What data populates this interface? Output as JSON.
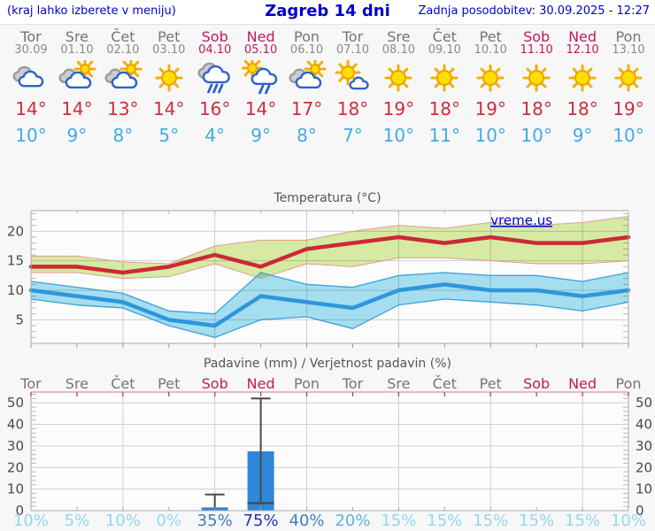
{
  "header": {
    "note": "(kraj lahko izberete v meniju)",
    "title": "Zagreb 14 dni",
    "updated": "Zadnja posodobitev: 30.09.2025 - 12:27"
  },
  "watermark": "vreme.us",
  "colors": {
    "accent_blue": "#0000cc",
    "weekend": "#c01a5c",
    "day_gray": "#757575",
    "high_red": "#d22b39",
    "low_blue": "#45aae6",
    "max_line": "#cc2936",
    "min_line": "#2f96dc",
    "max_band": "#d9eda5",
    "min_band": "#a6e1f2",
    "bar_blue": "#2f87d9",
    "pop_low": "#93d7f0",
    "pop_mid_low": "#58b6e0",
    "pop_mid": "#3f7fc0",
    "pop_high": "#1e32b9"
  },
  "days": [
    {
      "name": "Tor",
      "date": "30.09",
      "weekend": false,
      "icon": "cloudy",
      "high": "14°",
      "low": "10°",
      "pop": "10%"
    },
    {
      "name": "Sre",
      "date": "01.10",
      "weekend": false,
      "icon": "partly-sunny",
      "high": "14°",
      "low": "9°",
      "pop": "5%"
    },
    {
      "name": "Čet",
      "date": "02.10",
      "weekend": false,
      "icon": "partly-sunny",
      "high": "13°",
      "low": "8°",
      "pop": "10%"
    },
    {
      "name": "Pet",
      "date": "03.10",
      "weekend": false,
      "icon": "sunny",
      "high": "14°",
      "low": "5°",
      "pop": "0%"
    },
    {
      "name": "Sob",
      "date": "04.10",
      "weekend": true,
      "icon": "rain",
      "high": "16°",
      "low": "4°",
      "pop": "35%"
    },
    {
      "name": "Ned",
      "date": "05.10",
      "weekend": true,
      "icon": "sun-rain",
      "high": "14°",
      "low": "9°",
      "pop": "75%"
    },
    {
      "name": "Pon",
      "date": "06.10",
      "weekend": false,
      "icon": "partly-sunny",
      "high": "17°",
      "low": "8°",
      "pop": "40%"
    },
    {
      "name": "Tor",
      "date": "07.10",
      "weekend": false,
      "icon": "mostly-sunny",
      "high": "18°",
      "low": "7°",
      "pop": "20%"
    },
    {
      "name": "Sre",
      "date": "08.10",
      "weekend": false,
      "icon": "sunny",
      "high": "19°",
      "low": "10°",
      "pop": "15%"
    },
    {
      "name": "Čet",
      "date": "09.10",
      "weekend": false,
      "icon": "sunny",
      "high": "18°",
      "low": "11°",
      "pop": "15%"
    },
    {
      "name": "Pet",
      "date": "10.10",
      "weekend": false,
      "icon": "sunny",
      "high": "19°",
      "low": "10°",
      "pop": "15%"
    },
    {
      "name": "Sob",
      "date": "11.10",
      "weekend": true,
      "icon": "sunny",
      "high": "18°",
      "low": "10°",
      "pop": "15%"
    },
    {
      "name": "Ned",
      "date": "12.10",
      "weekend": true,
      "icon": "sunny",
      "high": "18°",
      "low": "9°",
      "pop": "15%"
    },
    {
      "name": "Pon",
      "date": "13.10",
      "weekend": false,
      "icon": "sunny",
      "high": "19°",
      "low": "10°",
      "pop": "10%"
    }
  ],
  "chart_data": [
    {
      "type": "line",
      "title": "Temperatura (°C)",
      "categories": [
        "Tor 30.09",
        "Sre 01.10",
        "Čet 02.10",
        "Pet 03.10",
        "Sob 04.10",
        "Ned 05.10",
        "Pon 06.10",
        "Tor 07.10",
        "Sre 08.10",
        "Čet 09.10",
        "Pet 10.10",
        "Sob 11.10",
        "Ned 12.10",
        "Pon 13.10"
      ],
      "ylim": [
        1,
        23.5
      ],
      "yticks": [
        5,
        10,
        15,
        20
      ],
      "grid": true,
      "series": [
        {
          "name": "max",
          "color": "#cc2936",
          "values": [
            14,
            14,
            13,
            14,
            16,
            14,
            17,
            18,
            19,
            18,
            19,
            18,
            18,
            19
          ]
        },
        {
          "name": "max_range_hi",
          "color": "#e59a93",
          "values": [
            15.8,
            15.8,
            14.8,
            14.5,
            17.5,
            18.5,
            18.5,
            20,
            21,
            20.5,
            21.5,
            21,
            21.5,
            22.5
          ]
        },
        {
          "name": "max_range_lo",
          "color": "#e59a93",
          "values": [
            13,
            13,
            12,
            12.3,
            14.5,
            12,
            14.5,
            14,
            15.5,
            15.5,
            15,
            14.5,
            14.5,
            15
          ]
        },
        {
          "name": "min",
          "color": "#2f96dc",
          "values": [
            10,
            9,
            8,
            5,
            4,
            9,
            8,
            7,
            10,
            11,
            10,
            10,
            9,
            10
          ]
        },
        {
          "name": "min_range_hi",
          "color": "#3da0dc",
          "values": [
            11.5,
            10.5,
            9.5,
            6.5,
            6,
            13,
            11,
            10.5,
            12.5,
            13,
            12.5,
            12.5,
            11.5,
            13
          ]
        },
        {
          "name": "min_range_lo",
          "color": "#3da0dc",
          "values": [
            8.5,
            7.5,
            7,
            4,
            2,
            5,
            5.5,
            3.5,
            7.5,
            8.5,
            8,
            7.5,
            6.5,
            8
          ]
        }
      ],
      "watermark": "vreme.us"
    },
    {
      "type": "bar",
      "title": "Padavine (mm) / Verjetnost padavin (%)",
      "categories": [
        "Tor",
        "Sre",
        "Čet",
        "Pet",
        "Sob",
        "Ned",
        "Pon",
        "Tor",
        "Sre",
        "Čet",
        "Pet",
        "Sob",
        "Ned",
        "Pon"
      ],
      "ylim": [
        0,
        55
      ],
      "yticks": [
        0,
        10,
        20,
        30,
        40,
        50
      ],
      "values": [
        0,
        0,
        0,
        0,
        1.5,
        27.5,
        0,
        0,
        0,
        0,
        0,
        0,
        0,
        0
      ],
      "bars": [
        {
          "day": 4,
          "value": 1.5,
          "whisker_top": 7.5
        },
        {
          "day": 5,
          "value": 27.5,
          "whisker_bottom": 3.5,
          "whisker_top": 52
        }
      ],
      "probability_percent": [
        10,
        5,
        10,
        0,
        35,
        75,
        40,
        20,
        15,
        15,
        15,
        15,
        15,
        10
      ]
    }
  ]
}
